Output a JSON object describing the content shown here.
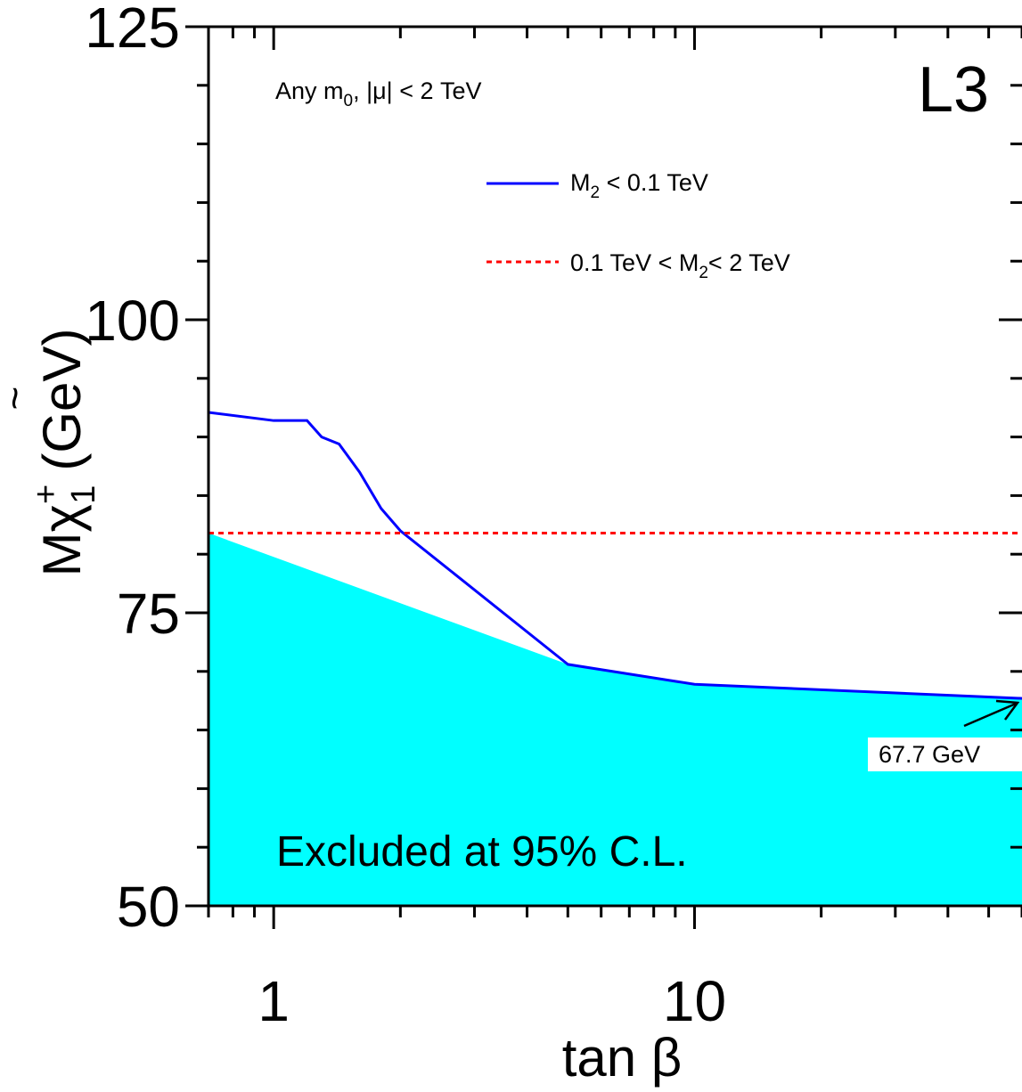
{
  "chart_data": {
    "type": "area",
    "xlabel": "tan β",
    "ylabel": "M",
    "ylabel_sym": "χ",
    "ylabel_tilde": "~",
    "ylabel_sup": "+",
    "ylabel_sub": "1",
    "ylabel_unit": "(GeV)",
    "x_scale": "log",
    "xlim": [
      0.7,
      60
    ],
    "ylim": [
      50,
      125
    ],
    "x_ticks": [
      {
        "value": 1,
        "label": "1"
      },
      {
        "value": 10,
        "label": "10"
      }
    ],
    "y_ticks": [
      {
        "value": 50,
        "label": "50"
      },
      {
        "value": 75,
        "label": "75"
      },
      {
        "value": 100,
        "label": "100"
      },
      {
        "value": 125,
        "label": "125"
      }
    ],
    "experiment_label": "L3",
    "conditions": {
      "prefix": "Any m",
      "sub": "0",
      "suffix": ", |μ| < 2 TeV"
    },
    "series": [
      {
        "name_main": "M",
        "name_sub": "2",
        "name_rest": " < 0.1 TeV",
        "color": "#0000ff",
        "style": "solid",
        "x": [
          0.7,
          1.0,
          1.2,
          1.3,
          1.43,
          1.6,
          1.8,
          2.0,
          5.0,
          10.0,
          60.0
        ],
        "y": [
          92.1,
          91.4,
          91.4,
          90.0,
          89.4,
          87.0,
          83.9,
          82.0,
          70.6,
          68.9,
          67.7
        ]
      },
      {
        "name_main": "0.1 TeV < M",
        "name_sub": "2",
        "name_rest": "< 2 TeV",
        "color": "#ff0000",
        "style": "dotted",
        "x": [
          0.7,
          60.0
        ],
        "y": [
          81.8,
          81.8
        ]
      }
    ],
    "excluded_region": {
      "label": "Excluded at 95% C.L.",
      "color": "#00ffff"
    },
    "annotation": {
      "label": "67.7 GeV",
      "x": 60,
      "y": 67.7
    },
    "grid": false,
    "legend": "upper-center"
  }
}
